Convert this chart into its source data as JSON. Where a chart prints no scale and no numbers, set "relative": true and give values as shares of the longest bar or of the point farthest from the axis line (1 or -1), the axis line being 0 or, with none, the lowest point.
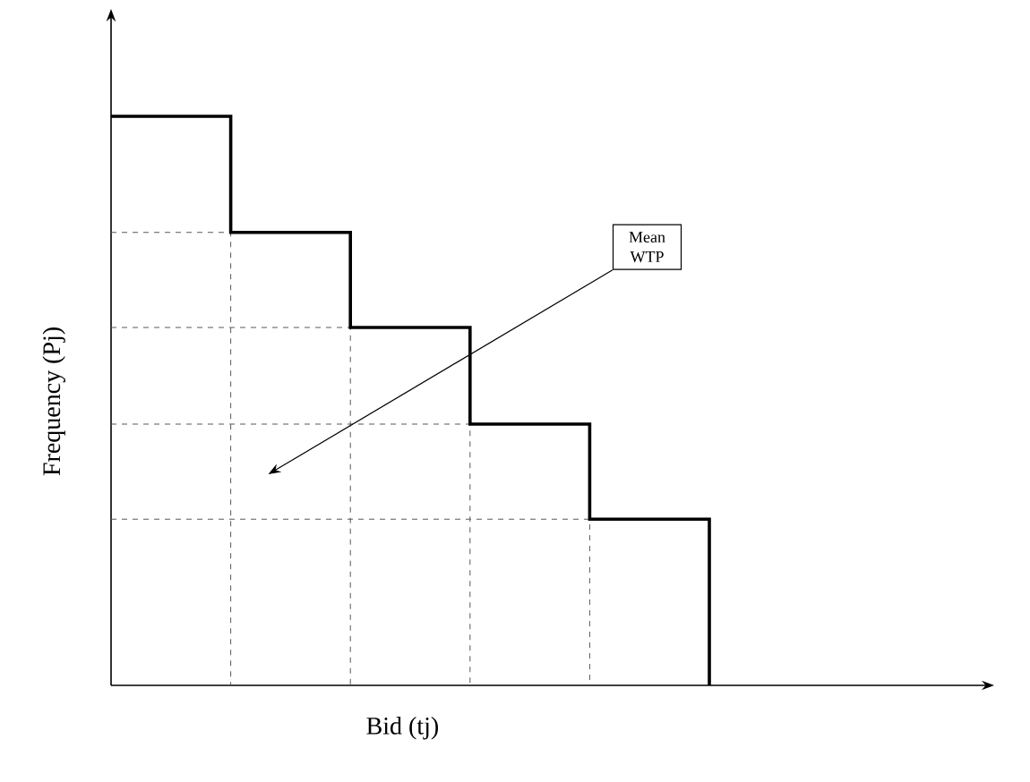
{
  "chart_data": {
    "type": "step",
    "relative": true,
    "xlabel": "Bid (tj)",
    "ylabel": "Frequency (Pj)",
    "categories": [
      null,
      null,
      null,
      null,
      null,
      null
    ],
    "series": [
      {
        "color": "#000000",
        "values": [
          1,
          0.796,
          0.629,
          0.459,
          0.292,
          0
        ]
      },
      {
        "line_style": "dashed",
        "color": "#595959",
        "values": [
          0.796,
          0,
          null,
          null,
          null,
          null
        ]
      },
      {
        "line_style": "dashed",
        "color": "#595959",
        "values": [
          0.629,
          0.629,
          0,
          null,
          null,
          null
        ]
      },
      {
        "line_style": "dashed",
        "color": "#595959",
        "values": [
          0.459,
          0.459,
          0.459,
          0,
          null,
          null
        ]
      },
      {
        "line_style": "dashed",
        "color": "#595959",
        "values": [
          0.292,
          0.292,
          0.292,
          0.292,
          0,
          null
        ]
      }
    ],
    "annotations": [
      "Mean WTP"
    ]
  }
}
